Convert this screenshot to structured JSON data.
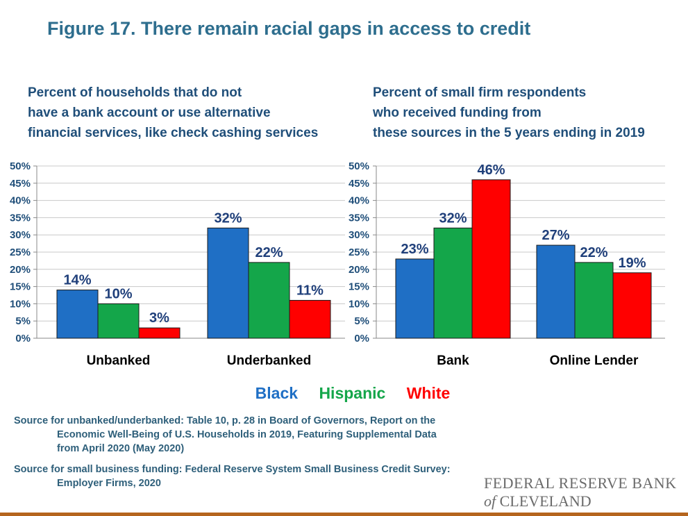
{
  "title": "Figure 17. There remain racial gaps in access to credit",
  "left_subtitle": [
    "Percent of households that do not",
    "have a bank account or use alternative",
    "financial services, like check cashing services"
  ],
  "right_subtitle": [
    "Percent of small firm respondents",
    "who received funding from",
    "these sources in the 5 years ending in 2019"
  ],
  "legend": [
    {
      "name": "Black",
      "color": "#1f6fc5"
    },
    {
      "name": "Hispanic",
      "color": "#14a64a"
    },
    {
      "name": "White",
      "color": "#ff0000"
    }
  ],
  "sources": {
    "s1_line1": "Source for unbanked/underbanked: Table 10, p. 28 in Board of Governors, Report on the",
    "s1_line2": "Economic Well-Being of U.S. Households in 2019, Featuring Supplemental Data",
    "s1_line3": "from April 2020 (May 2020)",
    "s2_line1": "Source for small business funding: Federal Reserve System Small Business Credit Survey:",
    "s2_line2": "Employer Firms, 2020"
  },
  "logo": {
    "line1": "FEDERAL RESERVE BANK",
    "line2_of": "of",
    "line2_city": "CLEVELAND"
  },
  "chart_data": [
    {
      "type": "bar",
      "categories": [
        "Unbanked",
        "Underbanked"
      ],
      "series": [
        {
          "name": "Black",
          "values": [
            14,
            32
          ],
          "labels": [
            "14%",
            "32%"
          ],
          "color": "#1f6fc5"
        },
        {
          "name": "Hispanic",
          "values": [
            10,
            22
          ],
          "labels": [
            "10%",
            "22%"
          ],
          "color": "#14a64a"
        },
        {
          "name": "White",
          "values": [
            3,
            11
          ],
          "labels": [
            "3%",
            "11%"
          ],
          "color": "#ff0000"
        }
      ],
      "yticks": [
        "0%",
        "5%",
        "10%",
        "15%",
        "20%",
        "25%",
        "30%",
        "35%",
        "40%",
        "45%",
        "50%"
      ],
      "ylim": [
        0,
        50
      ],
      "grid": true
    },
    {
      "type": "bar",
      "categories": [
        "Bank",
        "Online Lender"
      ],
      "series": [
        {
          "name": "Black",
          "values": [
            23,
            27
          ],
          "labels": [
            "23%",
            "27%"
          ],
          "color": "#1f6fc5"
        },
        {
          "name": "Hispanic",
          "values": [
            32,
            22
          ],
          "labels": [
            "32%",
            "22%"
          ],
          "color": "#14a64a"
        },
        {
          "name": "White",
          "values": [
            46,
            19
          ],
          "labels": [
            "46%",
            "19%"
          ],
          "color": "#ff0000"
        }
      ],
      "yticks": [
        "0%",
        "5%",
        "10%",
        "15%",
        "20%",
        "25%",
        "30%",
        "35%",
        "40%",
        "45%",
        "50%"
      ],
      "ylim": [
        0,
        50
      ],
      "grid": true
    }
  ]
}
